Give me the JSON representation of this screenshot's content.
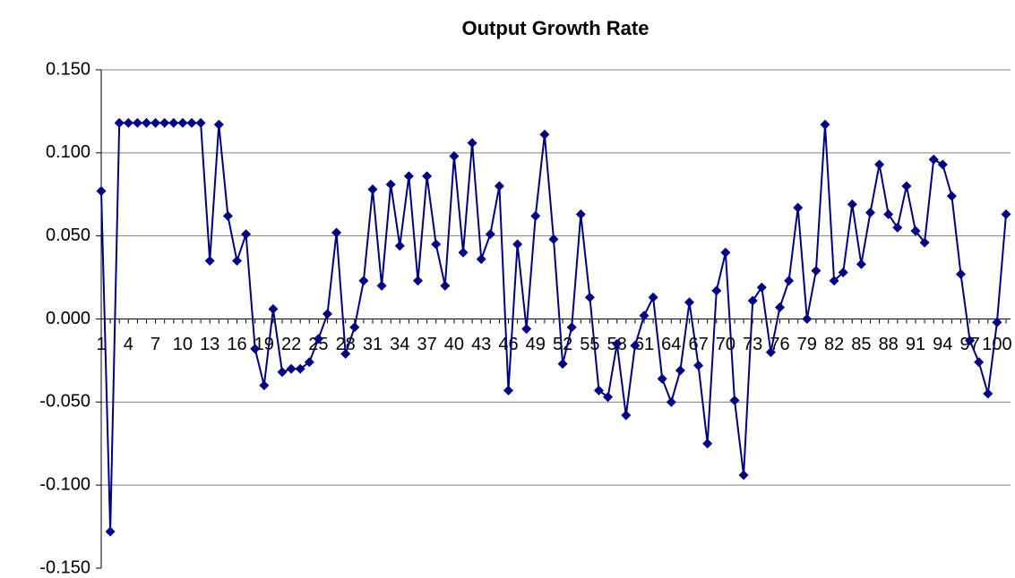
{
  "chart_data": {
    "type": "line",
    "title": "Output Growth Rate",
    "categories": [
      "1",
      null,
      null,
      "4",
      null,
      null,
      "7",
      null,
      null,
      "10",
      null,
      null,
      "13",
      null,
      null,
      "16",
      null,
      null,
      "19",
      null,
      null,
      "22",
      null,
      null,
      "25",
      null,
      null,
      "28",
      null,
      null,
      "31",
      null,
      null,
      "34",
      null,
      null,
      "37",
      null,
      null,
      "40",
      null,
      null,
      "43",
      null,
      null,
      "46",
      null,
      null,
      "49",
      null,
      null,
      "52",
      null,
      null,
      "55",
      null,
      null,
      "58",
      null,
      null,
      "61",
      null,
      null,
      "64",
      null,
      null,
      "67",
      null,
      null,
      "70",
      null,
      null,
      "73",
      null,
      null,
      "76",
      null,
      null,
      "79",
      null,
      null,
      "82",
      null,
      null,
      "85",
      null,
      null,
      "88",
      null,
      null,
      "91",
      null,
      null,
      "94",
      null,
      null,
      "97",
      null,
      null,
      "100",
      null
    ],
    "series": [
      {
        "color": "#000080",
        "values": [
          0.077,
          -0.128,
          0.118,
          0.118,
          0.118,
          0.118,
          0.118,
          0.118,
          0.118,
          0.118,
          0.118,
          0.118,
          0.035,
          0.117,
          0.062,
          0.035,
          0.051,
          -0.018,
          -0.04,
          0.006,
          -0.032,
          -0.03,
          -0.03,
          -0.026,
          -0.012,
          0.003,
          0.052,
          -0.021,
          -0.005,
          0.023,
          0.078,
          0.02,
          0.081,
          0.044,
          0.086,
          0.023,
          0.086,
          0.045,
          0.02,
          0.098,
          0.04,
          0.106,
          0.036,
          0.051,
          0.08,
          -0.043,
          0.045,
          -0.006,
          0.062,
          0.111,
          0.048,
          -0.027,
          -0.005,
          0.063,
          0.013,
          -0.043,
          -0.047,
          -0.015,
          -0.058,
          -0.016,
          0.002,
          0.013,
          -0.036,
          -0.05,
          -0.031,
          0.01,
          -0.028,
          -0.075,
          0.017,
          0.04,
          -0.049,
          -0.094,
          0.011,
          0.019,
          -0.02,
          0.007,
          0.023,
          0.067,
          0.0,
          0.029,
          0.117,
          0.023,
          0.028,
          0.069,
          0.033,
          0.064,
          0.093,
          0.063,
          0.055,
          0.08,
          0.053,
          0.046,
          0.096,
          0.093,
          0.074,
          0.027,
          -0.013,
          -0.026,
          -0.045,
          -0.002,
          0.063
        ]
      }
    ],
    "ylim": [
      -0.15,
      0.15
    ],
    "yticks": [
      {
        "value": -0.15,
        "label": "-0.150"
      },
      {
        "value": -0.1,
        "label": "-0.100"
      },
      {
        "value": -0.05,
        "label": "-0.050"
      },
      {
        "value": 0,
        "label": "0.000"
      },
      {
        "value": 0.05,
        "label": "0.050"
      },
      {
        "value": 0.1,
        "label": "0.100"
      },
      {
        "value": 0.15,
        "label": "0.150"
      }
    ],
    "grid": true
  }
}
